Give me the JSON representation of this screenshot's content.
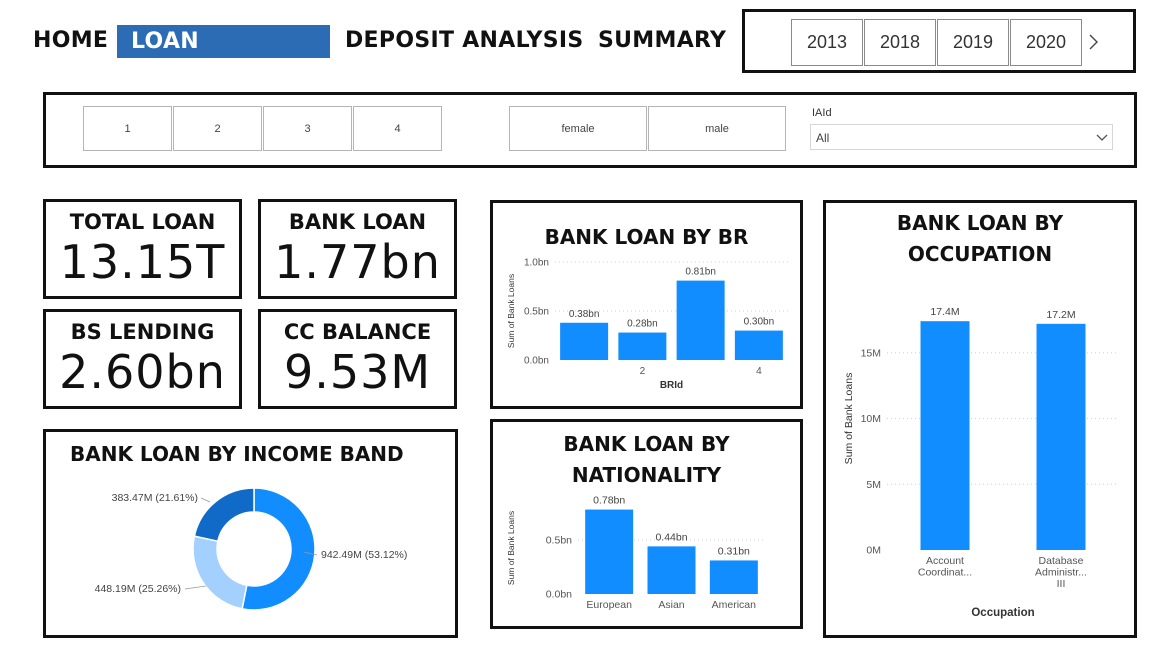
{
  "nav": {
    "home": "HOME",
    "loan_analysis": "LOAN ANALYSIS",
    "deposit_analysis": "DEPOSIT ANALYSIS",
    "summary": "SUMMARY"
  },
  "years": [
    "2013",
    "2018",
    "2019",
    "2020"
  ],
  "slicers": {
    "numbers": [
      "1",
      "2",
      "3",
      "4"
    ],
    "genders": [
      "female",
      "male"
    ],
    "iaid_label": "IAId",
    "iaid_value": "All"
  },
  "kpis": {
    "total_loan": {
      "title": "TOTAL LOAN",
      "value": "13.15T"
    },
    "bank_loan": {
      "title": "BANK LOAN",
      "value": "1.77bn"
    },
    "bs_lending": {
      "title": "BS LENDING",
      "value": "2.60bn"
    },
    "cc_balance": {
      "title": "CC BALANCE",
      "value": "9.53M"
    }
  },
  "colors": {
    "accent": "#2b6cb5",
    "bar": "#118dff",
    "donut": [
      "#118dff",
      "#a3d0ff",
      "#0f6bc7"
    ]
  },
  "chart_data": [
    {
      "type": "bar",
      "title": "BANK LOAN BY BR",
      "categories": [
        "1",
        "2",
        "3",
        "4"
      ],
      "tick_labels": [
        "",
        "2",
        "",
        "4"
      ],
      "values": [
        0.38,
        0.28,
        0.81,
        0.3
      ],
      "value_labels": [
        "0.38bn",
        "0.28bn",
        "0.81bn",
        "0.30bn"
      ],
      "xlabel": "BRId",
      "ylabel": "Sum of Bank Loans",
      "ylim": [
        0,
        1.0
      ],
      "yticks": [
        0,
        0.5,
        1.0
      ],
      "ytick_labels": [
        "0.0bn",
        "0.5bn",
        "1.0bn"
      ],
      "grid": true
    },
    {
      "type": "bar",
      "title": "BANK LOAN BY NATIONALITY",
      "categories": [
        "European",
        "Asian",
        "American"
      ],
      "values": [
        0.78,
        0.44,
        0.31
      ],
      "value_labels": [
        "0.78bn",
        "0.44bn",
        "0.31bn"
      ],
      "xlabel": "",
      "ylabel": "Sum of Bank Loans",
      "ylim": [
        0,
        0.85
      ],
      "yticks": [
        0,
        0.5
      ],
      "ytick_labels": [
        "0.0bn",
        "0.5bn"
      ],
      "grid": true
    },
    {
      "type": "bar",
      "title": "BANK LOAN BY OCCUPATION",
      "categories": [
        "Account Coordinat...",
        "Database Administr... III"
      ],
      "category_lines": [
        [
          "Account",
          "Coordinat..."
        ],
        [
          "Database",
          "Administr...",
          "III"
        ]
      ],
      "values": [
        17.4,
        17.2
      ],
      "value_labels": [
        "17.4M",
        "17.2M"
      ],
      "xlabel": "Occupation",
      "ylabel": "Sum of Bank Loans",
      "ylim": [
        0,
        20
      ],
      "yticks": [
        0,
        5,
        10,
        15
      ],
      "ytick_labels": [
        "0M",
        "5M",
        "10M",
        "15M"
      ],
      "grid": true
    },
    {
      "type": "pie",
      "title": "BANK LOAN BY INCOME BAND",
      "values": [
        942.49,
        448.19,
        383.47
      ],
      "percents": [
        53.12,
        25.26,
        21.61
      ],
      "labels": [
        "942.49M (53.12%)",
        "448.19M (25.26%)",
        "383.47M (21.61%)"
      ]
    }
  ]
}
